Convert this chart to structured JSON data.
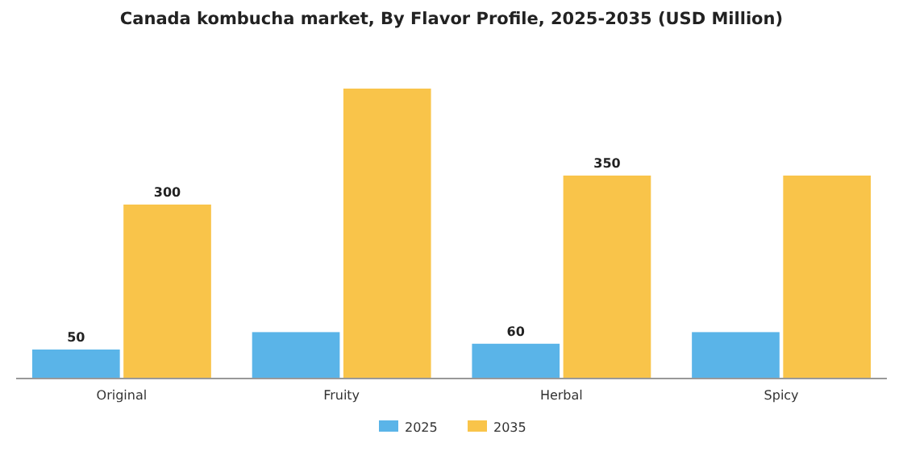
{
  "chart_data": {
    "type": "bar",
    "title": "Canada kombucha market, By Flavor Profile, 2025-2035 (USD Million)",
    "categories": [
      "Original",
      "Fruity",
      "Herbal",
      "Spicy"
    ],
    "legend": "bottom",
    "series": [
      {
        "name": "2025",
        "color": "#5ab4e8",
        "values": [
          50,
          80,
          60,
          80
        ],
        "value_labels": [
          "50",
          null,
          "60",
          null
        ]
      },
      {
        "name": "2035",
        "color": "#f9c44a",
        "values": [
          300,
          500,
          350,
          350
        ],
        "value_labels": [
          "300",
          null,
          "350",
          null
        ]
      }
    ]
  }
}
